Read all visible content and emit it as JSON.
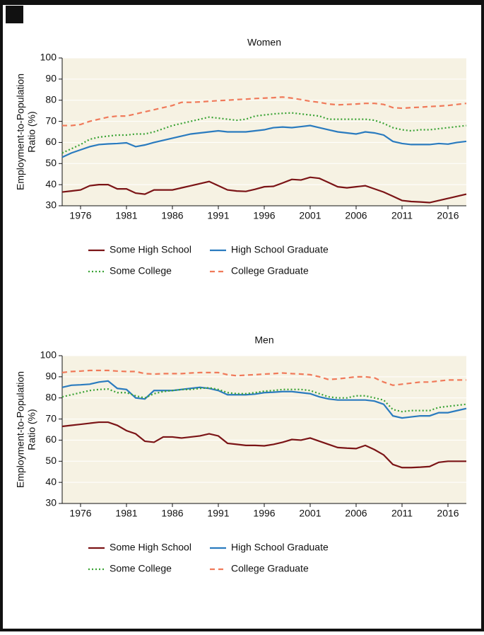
{
  "chart_data": [
    {
      "type": "line",
      "title": "Women",
      "ylabel": [
        "Employment-to-Population",
        "Ratio (%)"
      ],
      "x": [
        1974,
        1975,
        1976,
        1977,
        1978,
        1979,
        1980,
        1981,
        1982,
        1983,
        1984,
        1985,
        1986,
        1987,
        1988,
        1989,
        1990,
        1991,
        1992,
        1993,
        1994,
        1995,
        1996,
        1997,
        1998,
        1999,
        2000,
        2001,
        2002,
        2003,
        2004,
        2005,
        2006,
        2007,
        2008,
        2009,
        2010,
        2011,
        2012,
        2013,
        2014,
        2015,
        2016,
        2017,
        2018
      ],
      "xlim": [
        1974,
        2018
      ],
      "xticks": [
        1976,
        1981,
        1986,
        1991,
        1996,
        2001,
        2006,
        2011,
        2016
      ],
      "ylim": [
        30,
        100
      ],
      "yticks": [
        30,
        40,
        50,
        60,
        70,
        80,
        90,
        100
      ],
      "grid": true,
      "series": [
        {
          "name": "Some High School",
          "color": "#7b1416",
          "style": "solid",
          "values": [
            36.5,
            37,
            37.5,
            39.5,
            40,
            40,
            38,
            38,
            36,
            35.5,
            37.5,
            37.5,
            37.5,
            38.5,
            39.5,
            40.5,
            41.5,
            39.5,
            37.5,
            37,
            36.8,
            37.8,
            39,
            39.2,
            40.8,
            42.5,
            42.2,
            43.5,
            43,
            41,
            39,
            38.5,
            39,
            39.5,
            38,
            36.5,
            34.5,
            32.5,
            32,
            31.8,
            31.5,
            32.5,
            33.5,
            34.5,
            35.5
          ]
        },
        {
          "name": "High School Graduate",
          "color": "#2a7bbf",
          "style": "solid",
          "values": [
            53,
            55,
            56.5,
            58,
            59,
            59.3,
            59.5,
            59.8,
            58,
            58.8,
            60,
            61,
            62,
            63,
            64,
            64.5,
            65,
            65.5,
            65,
            65,
            65,
            65.5,
            66,
            67,
            67.3,
            67,
            67.5,
            68,
            67,
            66,
            65,
            64.5,
            64,
            65,
            64.5,
            63.5,
            60.5,
            59.5,
            59,
            59,
            59,
            59.5,
            59.2,
            60,
            60.5
          ]
        },
        {
          "name": "Some College",
          "color": "#3aa335",
          "style": "dotted",
          "values": [
            55,
            57,
            59,
            61.5,
            62.5,
            63,
            63.5,
            63.5,
            64,
            64,
            65,
            66.5,
            68,
            69,
            70,
            71,
            72,
            71.5,
            71,
            70.5,
            71,
            72.5,
            73,
            73.5,
            73.8,
            74,
            73.5,
            73,
            72.5,
            71,
            71,
            71,
            71,
            71,
            70.5,
            69,
            67,
            66,
            65.5,
            66,
            66,
            66.5,
            67,
            67.5,
            68
          ]
        },
        {
          "name": "College Graduate",
          "color": "#f07a5a",
          "style": "dashed",
          "values": [
            68,
            68,
            68.5,
            70,
            71,
            72,
            72.5,
            72.5,
            73.5,
            74.5,
            75.5,
            76.5,
            77.5,
            79,
            79,
            79.2,
            79.5,
            79.8,
            80,
            80.3,
            80.5,
            80.8,
            81,
            81.2,
            81.5,
            81,
            80.3,
            79.5,
            79,
            78.2,
            77.8,
            78,
            78.2,
            78.5,
            78.5,
            78,
            76.5,
            76.2,
            76.5,
            76.7,
            77,
            77.2,
            77.5,
            78,
            78.5
          ]
        }
      ]
    },
    {
      "type": "line",
      "title": "Men",
      "ylabel": [
        "Employment-to-Population",
        "Ratio (%)"
      ],
      "x": [
        1974,
        1975,
        1976,
        1977,
        1978,
        1979,
        1980,
        1981,
        1982,
        1983,
        1984,
        1985,
        1986,
        1987,
        1988,
        1989,
        1990,
        1991,
        1992,
        1993,
        1994,
        1995,
        1996,
        1997,
        1998,
        1999,
        2000,
        2001,
        2002,
        2003,
        2004,
        2005,
        2006,
        2007,
        2008,
        2009,
        2010,
        2011,
        2012,
        2013,
        2014,
        2015,
        2016,
        2017,
        2018
      ],
      "xlim": [
        1974,
        2018
      ],
      "xticks": [
        1976,
        1981,
        1986,
        1991,
        1996,
        2001,
        2006,
        2011,
        2016
      ],
      "ylim": [
        30,
        100
      ],
      "yticks": [
        30,
        40,
        50,
        60,
        70,
        80,
        90,
        100
      ],
      "grid": true,
      "series": [
        {
          "name": "Some High School",
          "color": "#7b1416",
          "style": "solid",
          "values": [
            66.5,
            67,
            67.5,
            68,
            68.5,
            68.5,
            67,
            64.5,
            63,
            59.5,
            59,
            61.5,
            61.5,
            61,
            61.5,
            62,
            63,
            62,
            58.5,
            58,
            57.5,
            57.5,
            57.3,
            58,
            59,
            60.3,
            60,
            61,
            59.5,
            58,
            56.5,
            56.2,
            56,
            57.5,
            55.5,
            53,
            48.5,
            47,
            47,
            47.2,
            47.5,
            49.5,
            50,
            50,
            50
          ]
        },
        {
          "name": "High School Graduate",
          "color": "#2a7bbf",
          "style": "solid",
          "values": [
            85,
            86,
            86.2,
            86.5,
            87.5,
            88,
            84.5,
            84,
            80,
            79.5,
            83.5,
            83.5,
            83.5,
            84,
            84.5,
            85,
            84.5,
            83.5,
            81.5,
            81.5,
            81.5,
            81.8,
            82.5,
            82.7,
            83,
            83,
            82.5,
            82,
            80.5,
            79.5,
            79,
            79,
            79,
            79,
            78.5,
            77,
            71.5,
            70.5,
            71,
            71.5,
            71.5,
            73,
            73,
            74,
            75
          ]
        },
        {
          "name": "Some College",
          "color": "#3aa335",
          "style": "dotted",
          "values": [
            80.5,
            81.5,
            82.5,
            83.5,
            84,
            84.2,
            82.5,
            82.5,
            81,
            80,
            82,
            83,
            83.5,
            84,
            84,
            84.5,
            84.8,
            84,
            82.5,
            82,
            82,
            82.5,
            83.2,
            83.5,
            84,
            84,
            84,
            83.5,
            82,
            80.5,
            80,
            80,
            81,
            81,
            80,
            79,
            74.5,
            73.5,
            74,
            74,
            74,
            75.5,
            76,
            76.5,
            77
          ]
        },
        {
          "name": "College Graduate",
          "color": "#f07a5a",
          "style": "dashed",
          "values": [
            92,
            92.5,
            92.7,
            93,
            93,
            93,
            92.7,
            92.5,
            92.5,
            91.5,
            91.3,
            91.5,
            91.5,
            91.5,
            91.8,
            92,
            92,
            92,
            91,
            90.5,
            90.8,
            91,
            91.3,
            91.5,
            91.8,
            91.5,
            91.3,
            91,
            90,
            88.7,
            89,
            89.5,
            90,
            90,
            89.5,
            87.5,
            86,
            86.5,
            87,
            87.5,
            87.5,
            88,
            88.5,
            88.5,
            88.5
          ]
        }
      ]
    }
  ]
}
